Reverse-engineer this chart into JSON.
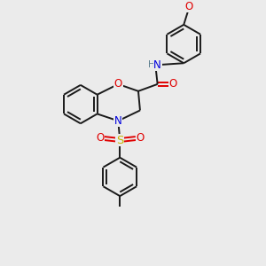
{
  "bg_color": "#ebebeb",
  "bond_color": "#1a1a1a",
  "atom_colors": {
    "O": "#e00000",
    "N": "#0000dd",
    "S": "#c8b400",
    "H": "#5f8090",
    "C": "#1a1a1a"
  },
  "figsize": [
    3.0,
    3.0
  ],
  "dpi": 100,
  "bond_lw": 1.4,
  "ring_r": 22,
  "font_size": 8.5
}
